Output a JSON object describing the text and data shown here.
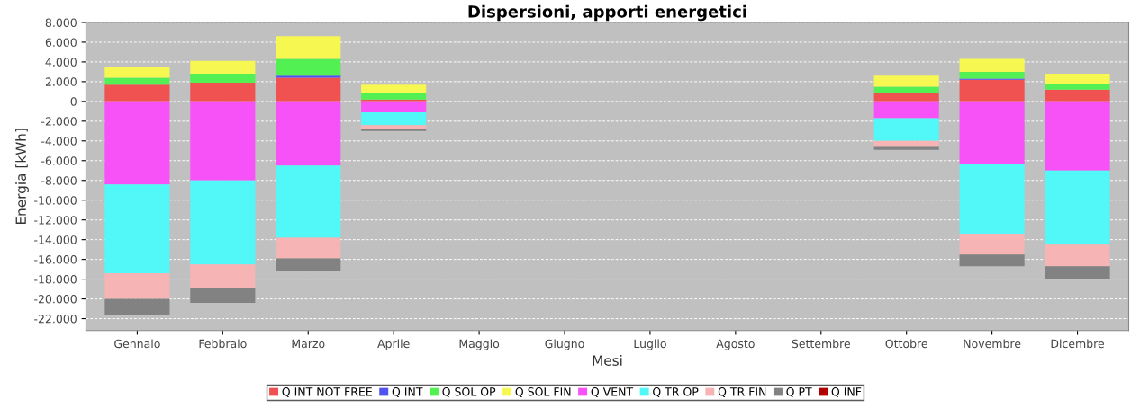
{
  "chart_data": {
    "type": "bar",
    "stacked": true,
    "title": "Dispersioni, apporti energetici",
    "xlabel": "Mesi",
    "ylabel": "Energia [kWh]",
    "categories": [
      "Gennaio",
      "Febbraio",
      "Marzo",
      "Aprile",
      "Maggio",
      "Giugno",
      "Luglio",
      "Agosto",
      "Settembre",
      "Ottobre",
      "Novembre",
      "Dicembre"
    ],
    "series": [
      {
        "name": "Q INT NOT FREE",
        "color": "#f05252",
        "values": [
          1700,
          1900,
          2400,
          200,
          null,
          null,
          null,
          null,
          null,
          900,
          2200,
          1200
        ]
      },
      {
        "name": "Q INT",
        "color": "#5252f0",
        "values": [
          null,
          null,
          200,
          null,
          null,
          null,
          null,
          null,
          null,
          null,
          100,
          null
        ]
      },
      {
        "name": "Q SOL OP",
        "color": "#52f052",
        "values": [
          700,
          900,
          1700,
          700,
          null,
          null,
          null,
          null,
          null,
          600,
          700,
          600
        ]
      },
      {
        "name": "Q SOL FIN",
        "color": "#f7f752",
        "values": [
          1100,
          1300,
          2300,
          800,
          null,
          null,
          null,
          null,
          null,
          1100,
          1300,
          1000
        ]
      },
      {
        "name": "Q VENT",
        "color": "#f752f7",
        "values": [
          -8400,
          -8000,
          -6500,
          -1100,
          null,
          null,
          null,
          null,
          null,
          -1700,
          -6300,
          -7000
        ]
      },
      {
        "name": "Q TR OP",
        "color": "#52f7f7",
        "values": [
          -9000,
          -8500,
          -7300,
          -1300,
          null,
          null,
          null,
          null,
          null,
          -2300,
          -7100,
          -7500
        ]
      },
      {
        "name": "Q TR FIN",
        "color": "#f7b4b4",
        "values": [
          -2600,
          -2400,
          -2100,
          -400,
          null,
          null,
          null,
          null,
          null,
          -600,
          -2100,
          -2200
        ]
      },
      {
        "name": "Q PT",
        "color": "#828282",
        "values": [
          -1600,
          -1500,
          -1300,
          -200,
          null,
          null,
          null,
          null,
          null,
          -300,
          -1200,
          -1300
        ]
      },
      {
        "name": "Q INF",
        "color": "#b00000",
        "values": [
          null,
          null,
          null,
          null,
          null,
          null,
          null,
          null,
          null,
          null,
          null,
          null
        ]
      }
    ],
    "ylim": [
      -23200,
      8000
    ],
    "yticks": [
      {
        "value": -22000,
        "label": "-22.000"
      },
      {
        "value": -20000,
        "label": "-20.000"
      },
      {
        "value": -18000,
        "label": "-18.000"
      },
      {
        "value": -16000,
        "label": "-16.000"
      },
      {
        "value": -14000,
        "label": "-14.000"
      },
      {
        "value": -12000,
        "label": "-12.000"
      },
      {
        "value": -10000,
        "label": "-10.000"
      },
      {
        "value": -8000,
        "label": "-8.000"
      },
      {
        "value": -6000,
        "label": "-6.000"
      },
      {
        "value": -4000,
        "label": "-4.000"
      },
      {
        "value": -2000,
        "label": "-2.000"
      },
      0,
      {
        "value": 2000,
        "label": "2.000"
      },
      {
        "value": 4000,
        "label": "4.000"
      },
      {
        "value": 6000,
        "label": "6.000"
      },
      {
        "value": 8000,
        "label": "8.000"
      }
    ],
    "grid": "y",
    "legend": "bottom"
  }
}
